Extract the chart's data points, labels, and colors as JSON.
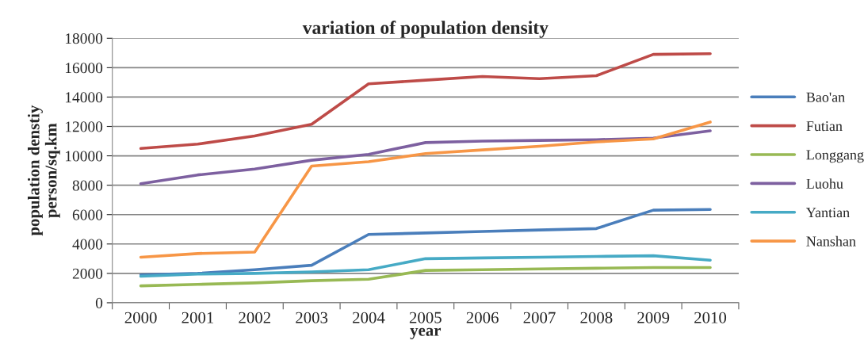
{
  "chart_data": {
    "type": "line",
    "title": "variation of population density",
    "xlabel": "year",
    "ylabel": "population denstiy\nperson/sq.km",
    "categories": [
      "2000",
      "2001",
      "2002",
      "2003",
      "2004",
      "2005",
      "2006",
      "2007",
      "2008",
      "2009",
      "2010"
    ],
    "series": [
      {
        "name": "Bao'an",
        "color": "#4a7ebb",
        "values": [
          1900,
          2000,
          2250,
          2550,
          4650,
          4750,
          4850,
          4950,
          5050,
          6300,
          6350
        ]
      },
      {
        "name": "Futian",
        "color": "#be4b48",
        "values": [
          10500,
          10800,
          11350,
          12150,
          14900,
          15150,
          15400,
          15250,
          15450,
          16900,
          16950
        ]
      },
      {
        "name": "Longgang",
        "color": "#98b954",
        "values": [
          1150,
          1250,
          1350,
          1500,
          1600,
          2200,
          2250,
          2300,
          2350,
          2400,
          2400
        ]
      },
      {
        "name": "Luohu",
        "color": "#7d60a0",
        "values": [
          8100,
          8700,
          9100,
          9700,
          10100,
          10900,
          11000,
          11050,
          11100,
          11200,
          11700
        ]
      },
      {
        "name": "Yantian",
        "color": "#46aac5",
        "values": [
          1800,
          1950,
          2000,
          2100,
          2250,
          3000,
          3050,
          3100,
          3150,
          3200,
          2900
        ]
      },
      {
        "name": "Nanshan",
        "color": "#f79646",
        "values": [
          3100,
          3350,
          3450,
          9300,
          9600,
          10150,
          10400,
          10650,
          10950,
          11150,
          12300
        ]
      }
    ],
    "ylim": [
      0,
      18000
    ],
    "yticks": [
      0,
      2000,
      4000,
      6000,
      8000,
      10000,
      12000,
      14000,
      16000,
      18000
    ],
    "grid": "y",
    "legend": "right",
    "marker": "none",
    "line_style": "solid"
  }
}
